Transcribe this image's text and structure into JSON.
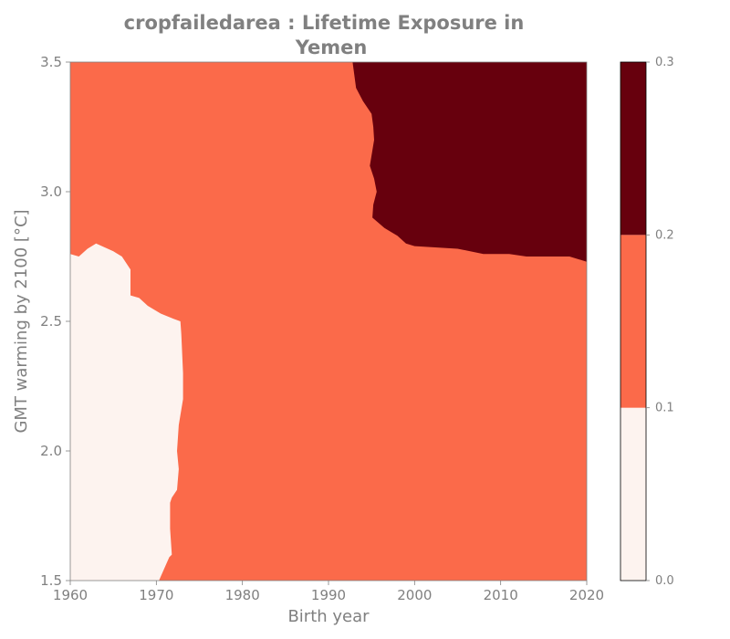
{
  "chart_data": {
    "type": "filled-contour",
    "title_lines": [
      "cropfailedarea : Lifetime Exposure in",
      "Yemen"
    ],
    "xlabel": "Birth year",
    "ylabel": "GMT warming by 2100 [°C]",
    "xlim": [
      1960,
      2020
    ],
    "ylim": [
      1.5,
      3.5
    ],
    "xticks": [
      "1960",
      "1970",
      "1980",
      "1990",
      "2000",
      "2010",
      "2020"
    ],
    "yticks": [
      "1.5",
      "2.0",
      "2.5",
      "3.0",
      "3.5"
    ],
    "colorbar": {
      "ticks": [
        "0.0",
        "0.1",
        "0.2",
        "0.3"
      ],
      "levels": [
        0.0,
        0.1,
        0.2,
        0.3
      ],
      "colors": [
        "#fdf3ef",
        "#fb6a4a",
        "#67000d"
      ]
    },
    "regions": [
      {
        "level_range": "0.0-0.1",
        "color": "#fdf3ef",
        "boundary": [
          [
            1960,
            2.76
          ],
          [
            1961,
            2.75
          ],
          [
            1962,
            2.78
          ],
          [
            1963,
            2.8
          ],
          [
            1965,
            2.77
          ],
          [
            1966,
            2.75
          ],
          [
            1967,
            2.7
          ],
          [
            1967,
            2.6
          ],
          [
            1968,
            2.59
          ],
          [
            1969,
            2.56
          ],
          [
            1970.5,
            2.53
          ],
          [
            1972,
            2.51
          ],
          [
            1972.8,
            2.5
          ],
          [
            1972.9,
            2.45
          ],
          [
            1973.1,
            2.3
          ],
          [
            1973.1,
            2.2
          ],
          [
            1972.6,
            2.1
          ],
          [
            1972.4,
            2.0
          ],
          [
            1972.6,
            1.93
          ],
          [
            1972.4,
            1.85
          ],
          [
            1971.8,
            1.82
          ],
          [
            1971.6,
            1.8
          ],
          [
            1971.6,
            1.7
          ],
          [
            1971.8,
            1.6
          ],
          [
            1971.5,
            1.59
          ],
          [
            1970.3,
            1.5
          ],
          [
            1960,
            1.5
          ]
        ]
      },
      {
        "level_range": "0.2-0.3",
        "color": "#67000d",
        "boundary": [
          [
            1992.8,
            3.5
          ],
          [
            1993.2,
            3.4
          ],
          [
            1994.0,
            3.35
          ],
          [
            1995.0,
            3.3
          ],
          [
            1995.2,
            3.25
          ],
          [
            1995.3,
            3.2
          ],
          [
            1994.8,
            3.1
          ],
          [
            1995.3,
            3.05
          ],
          [
            1995.6,
            3.0
          ],
          [
            1995.2,
            2.95
          ],
          [
            1995.1,
            2.9
          ],
          [
            1996.5,
            2.86
          ],
          [
            1998.0,
            2.83
          ],
          [
            1999.0,
            2.8
          ],
          [
            2000.0,
            2.79
          ],
          [
            2005.0,
            2.78
          ],
          [
            2008.0,
            2.76
          ],
          [
            2011.0,
            2.76
          ],
          [
            2013.0,
            2.75
          ],
          [
            2018.0,
            2.75
          ],
          [
            2020.0,
            2.73
          ],
          [
            2020.0,
            3.5
          ]
        ]
      }
    ],
    "background_level_range": "0.1-0.2",
    "background_color": "#fb6a4a",
    "grid": false
  }
}
